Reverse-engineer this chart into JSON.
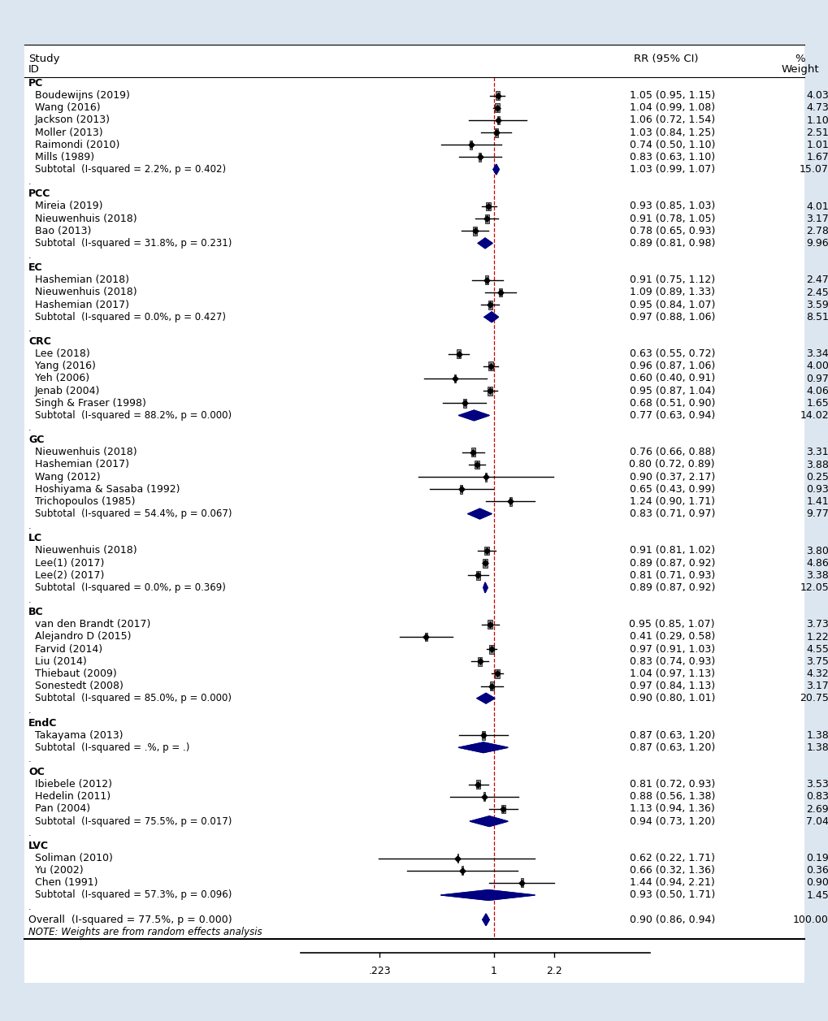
{
  "background_color": "#dce6f0",
  "inner_bg_color": "#ffffff",
  "x_ticks": [
    0.223,
    1.0,
    2.2
  ],
  "x_tick_labels": [
    ".223",
    "1",
    "2.2"
  ],
  "rows": [
    {
      "type": "header"
    },
    {
      "type": "subgroup",
      "label": "PC"
    },
    {
      "type": "study",
      "label": "Boudewijns (2019)",
      "rr": 1.05,
      "lo": 0.95,
      "hi": 1.15,
      "weight": 4.03,
      "rr_text": "1.05 (0.95, 1.15)",
      "wt_text": "4.03"
    },
    {
      "type": "study",
      "label": "Wang (2016)",
      "rr": 1.04,
      "lo": 0.99,
      "hi": 1.08,
      "weight": 4.73,
      "rr_text": "1.04 (0.99, 1.08)",
      "wt_text": "4.73"
    },
    {
      "type": "study",
      "label": "Jackson (2013)",
      "rr": 1.06,
      "lo": 0.72,
      "hi": 1.54,
      "weight": 1.1,
      "rr_text": "1.06 (0.72, 1.54)",
      "wt_text": "1.10"
    },
    {
      "type": "study",
      "label": "Moller (2013)",
      "rr": 1.03,
      "lo": 0.84,
      "hi": 1.25,
      "weight": 2.51,
      "rr_text": "1.03 (0.84, 1.25)",
      "wt_text": "2.51"
    },
    {
      "type": "study",
      "label": "Raimondi (2010)",
      "rr": 0.74,
      "lo": 0.5,
      "hi": 1.1,
      "weight": 1.01,
      "rr_text": "0.74 (0.50, 1.10)",
      "wt_text": "1.01"
    },
    {
      "type": "study",
      "label": "Mills (1989)",
      "rr": 0.83,
      "lo": 0.63,
      "hi": 1.1,
      "weight": 1.67,
      "rr_text": "0.83 (0.63, 1.10)",
      "wt_text": "1.67"
    },
    {
      "type": "subtotal",
      "label": "Subtotal  (I-squared = 2.2%, p = 0.402)",
      "rr": 1.03,
      "lo": 0.99,
      "hi": 1.07,
      "rr_text": "1.03 (0.99, 1.07)",
      "wt_text": "15.07"
    },
    {
      "type": "spacer",
      "label": "."
    },
    {
      "type": "subgroup",
      "label": "PCC"
    },
    {
      "type": "study",
      "label": "Mireia (2019)",
      "rr": 0.93,
      "lo": 0.85,
      "hi": 1.03,
      "weight": 4.01,
      "rr_text": "0.93 (0.85, 1.03)",
      "wt_text": "4.01"
    },
    {
      "type": "study",
      "label": "Nieuwenhuis (2018)",
      "rr": 0.91,
      "lo": 0.78,
      "hi": 1.05,
      "weight": 3.17,
      "rr_text": "0.91 (0.78, 1.05)",
      "wt_text": "3.17"
    },
    {
      "type": "study",
      "label": "Bao (2013)",
      "rr": 0.78,
      "lo": 0.65,
      "hi": 0.93,
      "weight": 2.78,
      "rr_text": "0.78 (0.65, 0.93)",
      "wt_text": "2.78"
    },
    {
      "type": "subtotal",
      "label": "Subtotal  (I-squared = 31.8%, p = 0.231)",
      "rr": 0.89,
      "lo": 0.81,
      "hi": 0.98,
      "rr_text": "0.89 (0.81, 0.98)",
      "wt_text": "9.96"
    },
    {
      "type": "spacer",
      "label": "."
    },
    {
      "type": "subgroup",
      "label": "EC"
    },
    {
      "type": "study",
      "label": "Hashemian (2018)",
      "rr": 0.91,
      "lo": 0.75,
      "hi": 1.12,
      "weight": 2.47,
      "rr_text": "0.91 (0.75, 1.12)",
      "wt_text": "2.47"
    },
    {
      "type": "study",
      "label": "Nieuwenhuis (2018)",
      "rr": 1.09,
      "lo": 0.89,
      "hi": 1.33,
      "weight": 2.45,
      "rr_text": "1.09 (0.89, 1.33)",
      "wt_text": "2.45"
    },
    {
      "type": "study",
      "label": "Hashemian (2017)",
      "rr": 0.95,
      "lo": 0.84,
      "hi": 1.07,
      "weight": 3.59,
      "rr_text": "0.95 (0.84, 1.07)",
      "wt_text": "3.59"
    },
    {
      "type": "subtotal",
      "label": "Subtotal  (I-squared = 0.0%, p = 0.427)",
      "rr": 0.97,
      "lo": 0.88,
      "hi": 1.06,
      "rr_text": "0.97 (0.88, 1.06)",
      "wt_text": "8.51"
    },
    {
      "type": "spacer",
      "label": "."
    },
    {
      "type": "subgroup",
      "label": "CRC"
    },
    {
      "type": "study",
      "label": "Lee (2018)",
      "rr": 0.63,
      "lo": 0.55,
      "hi": 0.72,
      "weight": 3.34,
      "rr_text": "0.63 (0.55, 0.72)",
      "wt_text": "3.34"
    },
    {
      "type": "study",
      "label": "Yang (2016)",
      "rr": 0.96,
      "lo": 0.87,
      "hi": 1.06,
      "weight": 4.0,
      "rr_text": "0.96 (0.87, 1.06)",
      "wt_text": "4.00"
    },
    {
      "type": "study",
      "label": "Yeh (2006)",
      "rr": 0.6,
      "lo": 0.4,
      "hi": 0.91,
      "weight": 0.97,
      "rr_text": "0.60 (0.40, 0.91)",
      "wt_text": "0.97"
    },
    {
      "type": "study",
      "label": "Jenab (2004)",
      "rr": 0.95,
      "lo": 0.87,
      "hi": 1.04,
      "weight": 4.06,
      "rr_text": "0.95 (0.87, 1.04)",
      "wt_text": "4.06"
    },
    {
      "type": "study",
      "label": "Singh & Fraser (1998)",
      "rr": 0.68,
      "lo": 0.51,
      "hi": 0.9,
      "weight": 1.65,
      "rr_text": "0.68 (0.51, 0.90)",
      "wt_text": "1.65"
    },
    {
      "type": "subtotal",
      "label": "Subtotal  (I-squared = 88.2%, p = 0.000)",
      "rr": 0.77,
      "lo": 0.63,
      "hi": 0.94,
      "rr_text": "0.77 (0.63, 0.94)",
      "wt_text": "14.02"
    },
    {
      "type": "spacer",
      "label": "."
    },
    {
      "type": "subgroup",
      "label": "GC"
    },
    {
      "type": "study",
      "label": "Nieuwenhuis (2018)",
      "rr": 0.76,
      "lo": 0.66,
      "hi": 0.88,
      "weight": 3.31,
      "rr_text": "0.76 (0.66, 0.88)",
      "wt_text": "3.31"
    },
    {
      "type": "study",
      "label": "Hashemian (2017)",
      "rr": 0.8,
      "lo": 0.72,
      "hi": 0.89,
      "weight": 3.88,
      "rr_text": "0.80 (0.72, 0.89)",
      "wt_text": "3.88"
    },
    {
      "type": "study",
      "label": "Wang (2012)",
      "rr": 0.9,
      "lo": 0.37,
      "hi": 2.17,
      "weight": 0.25,
      "rr_text": "0.90 (0.37, 2.17)",
      "wt_text": "0.25"
    },
    {
      "type": "study",
      "label": "Hoshiyama & Sasaba (1992)",
      "rr": 0.65,
      "lo": 0.43,
      "hi": 0.99,
      "weight": 0.93,
      "rr_text": "0.65 (0.43, 0.99)",
      "wt_text": "0.93"
    },
    {
      "type": "study",
      "label": "Trichopoulos (1985)",
      "rr": 1.24,
      "lo": 0.9,
      "hi": 1.71,
      "weight": 1.41,
      "rr_text": "1.24 (0.90, 1.71)",
      "wt_text": "1.41"
    },
    {
      "type": "subtotal",
      "label": "Subtotal  (I-squared = 54.4%, p = 0.067)",
      "rr": 0.83,
      "lo": 0.71,
      "hi": 0.97,
      "rr_text": "0.83 (0.71, 0.97)",
      "wt_text": "9.77"
    },
    {
      "type": "spacer",
      "label": "."
    },
    {
      "type": "subgroup",
      "label": "LC"
    },
    {
      "type": "study",
      "label": "Nieuwenhuis (2018)",
      "rr": 0.91,
      "lo": 0.81,
      "hi": 1.02,
      "weight": 3.8,
      "rr_text": "0.91 (0.81, 1.02)",
      "wt_text": "3.80"
    },
    {
      "type": "study",
      "label": "Lee(1) (2017)",
      "rr": 0.89,
      "lo": 0.87,
      "hi": 0.92,
      "weight": 4.86,
      "rr_text": "0.89 (0.87, 0.92)",
      "wt_text": "4.86"
    },
    {
      "type": "study",
      "label": "Lee(2) (2017)",
      "rr": 0.81,
      "lo": 0.71,
      "hi": 0.93,
      "weight": 3.38,
      "rr_text": "0.81 (0.71, 0.93)",
      "wt_text": "3.38"
    },
    {
      "type": "subtotal",
      "label": "Subtotal  (I-squared = 0.0%, p = 0.369)",
      "rr": 0.89,
      "lo": 0.87,
      "hi": 0.92,
      "rr_text": "0.89 (0.87, 0.92)",
      "wt_text": "12.05"
    },
    {
      "type": "spacer",
      "label": "."
    },
    {
      "type": "subgroup",
      "label": "BC"
    },
    {
      "type": "study",
      "label": "van den Brandt (2017)",
      "rr": 0.95,
      "lo": 0.85,
      "hi": 1.07,
      "weight": 3.73,
      "rr_text": "0.95 (0.85, 1.07)",
      "wt_text": "3.73"
    },
    {
      "type": "study",
      "label": "Alejandro D (2015)",
      "rr": 0.41,
      "lo": 0.29,
      "hi": 0.58,
      "weight": 1.22,
      "rr_text": "0.41 (0.29, 0.58)",
      "wt_text": "1.22"
    },
    {
      "type": "study",
      "label": "Farvid (2014)",
      "rr": 0.97,
      "lo": 0.91,
      "hi": 1.03,
      "weight": 4.55,
      "rr_text": "0.97 (0.91, 1.03)",
      "wt_text": "4.55"
    },
    {
      "type": "study",
      "label": "Liu (2014)",
      "rr": 0.83,
      "lo": 0.74,
      "hi": 0.93,
      "weight": 3.75,
      "rr_text": "0.83 (0.74, 0.93)",
      "wt_text": "3.75"
    },
    {
      "type": "study",
      "label": "Thiebaut (2009)",
      "rr": 1.04,
      "lo": 0.97,
      "hi": 1.13,
      "weight": 4.32,
      "rr_text": "1.04 (0.97, 1.13)",
      "wt_text": "4.32"
    },
    {
      "type": "study",
      "label": "Sonestedt (2008)",
      "rr": 0.97,
      "lo": 0.84,
      "hi": 1.13,
      "weight": 3.17,
      "rr_text": "0.97 (0.84, 1.13)",
      "wt_text": "3.17"
    },
    {
      "type": "subtotal",
      "label": "Subtotal  (I-squared = 85.0%, p = 0.000)",
      "rr": 0.9,
      "lo": 0.8,
      "hi": 1.01,
      "rr_text": "0.90 (0.80, 1.01)",
      "wt_text": "20.75"
    },
    {
      "type": "spacer",
      "label": "."
    },
    {
      "type": "subgroup",
      "label": "EndC"
    },
    {
      "type": "study",
      "label": "Takayama (2013)",
      "rr": 0.87,
      "lo": 0.63,
      "hi": 1.2,
      "weight": 1.38,
      "rr_text": "0.87 (0.63, 1.20)",
      "wt_text": "1.38"
    },
    {
      "type": "subtotal",
      "label": "Subtotal  (I-squared = .%, p = .)",
      "rr": 0.87,
      "lo": 0.63,
      "hi": 1.2,
      "rr_text": "0.87 (0.63, 1.20)",
      "wt_text": "1.38"
    },
    {
      "type": "spacer",
      "label": "."
    },
    {
      "type": "subgroup",
      "label": "OC"
    },
    {
      "type": "study",
      "label": "Ibiebele (2012)",
      "rr": 0.81,
      "lo": 0.72,
      "hi": 0.93,
      "weight": 3.53,
      "rr_text": "0.81 (0.72, 0.93)",
      "wt_text": "3.53"
    },
    {
      "type": "study",
      "label": "Hedelin (2011)",
      "rr": 0.88,
      "lo": 0.56,
      "hi": 1.38,
      "weight": 0.83,
      "rr_text": "0.88 (0.56, 1.38)",
      "wt_text": "0.83"
    },
    {
      "type": "study",
      "label": "Pan (2004)",
      "rr": 1.13,
      "lo": 0.94,
      "hi": 1.36,
      "weight": 2.69,
      "rr_text": "1.13 (0.94, 1.36)",
      "wt_text": "2.69"
    },
    {
      "type": "subtotal",
      "label": "Subtotal  (I-squared = 75.5%, p = 0.017)",
      "rr": 0.94,
      "lo": 0.73,
      "hi": 1.2,
      "rr_text": "0.94 (0.73, 1.20)",
      "wt_text": "7.04"
    },
    {
      "type": "spacer",
      "label": "."
    },
    {
      "type": "subgroup",
      "label": "LVC"
    },
    {
      "type": "study",
      "label": "Soliman (2010)",
      "rr": 0.62,
      "lo": 0.22,
      "hi": 1.71,
      "weight": 0.19,
      "rr_text": "0.62 (0.22, 1.71)",
      "wt_text": "0.19"
    },
    {
      "type": "study",
      "label": "Yu (2002)",
      "rr": 0.66,
      "lo": 0.32,
      "hi": 1.36,
      "weight": 0.36,
      "rr_text": "0.66 (0.32, 1.36)",
      "wt_text": "0.36"
    },
    {
      "type": "study",
      "label": "Chen (1991)",
      "rr": 1.44,
      "lo": 0.94,
      "hi": 2.21,
      "weight": 0.9,
      "rr_text": "1.44 (0.94, 2.21)",
      "wt_text": "0.90"
    },
    {
      "type": "subtotal",
      "label": "Subtotal  (I-squared = 57.3%, p = 0.096)",
      "rr": 0.93,
      "lo": 0.5,
      "hi": 1.71,
      "rr_text": "0.93 (0.50, 1.71)",
      "wt_text": "1.45"
    },
    {
      "type": "spacer",
      "label": "."
    },
    {
      "type": "overall",
      "label": "Overall  (I-squared = 77.5%, p = 0.000)",
      "rr": 0.9,
      "lo": 0.86,
      "hi": 0.94,
      "rr_text": "0.90 (0.86, 0.94)",
      "wt_text": "100.00"
    },
    {
      "type": "note",
      "label": "NOTE: Weights are from random effects analysis"
    }
  ]
}
